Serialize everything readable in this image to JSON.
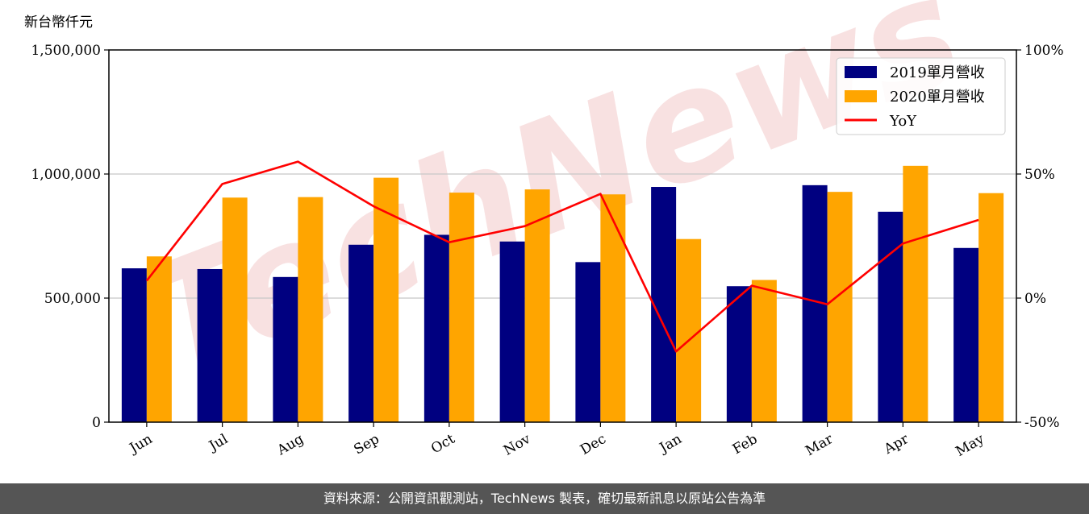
{
  "footer": {
    "source_text": "資料來源：公開資訊觀測站，TechNews 製表，確切最新訊息以原站公告為準"
  },
  "watermark": {
    "text": "TechNews",
    "color": "#f2c9c9"
  },
  "chart_data": {
    "type": "bar",
    "unit_label": "新台幣仟元",
    "categories": [
      "Jun",
      "Jul",
      "Aug",
      "Sep",
      "Oct",
      "Nov",
      "Dec",
      "Jan",
      "Feb",
      "Mar",
      "Apr",
      "May"
    ],
    "series": [
      {
        "name": "2019單月營收",
        "type": "bar",
        "color": "#000080",
        "values": [
          620000,
          617000,
          585000,
          715000,
          755000,
          728000,
          645000,
          948000,
          548000,
          955000,
          848000,
          702000
        ]
      },
      {
        "name": "2020單月營收",
        "type": "bar",
        "color": "#ffa500",
        "values": [
          668000,
          905000,
          907000,
          985000,
          925000,
          938000,
          918000,
          738000,
          573000,
          928000,
          1033000,
          923000
        ]
      },
      {
        "name": "YoY",
        "type": "line",
        "axis": "right",
        "color": "#ff0000",
        "values": [
          7.0,
          46.0,
          55.0,
          37.0,
          22.5,
          29.0,
          42.0,
          -21.5,
          5.0,
          -2.5,
          22.0,
          31.5
        ]
      }
    ],
    "ylim": [
      0,
      1500000
    ],
    "yticks": [
      0,
      500000,
      1000000,
      1500000
    ],
    "ytick_labels": [
      "0",
      "500,000",
      "1,000,000",
      "1,500,000"
    ],
    "y2lim": [
      -50,
      100
    ],
    "y2ticks": [
      -50,
      0,
      50,
      100
    ],
    "y2tick_labels": [
      "-50%",
      "0%",
      "50%",
      "100%"
    ],
    "grid": "horizontal",
    "legend_position": "top-right"
  }
}
